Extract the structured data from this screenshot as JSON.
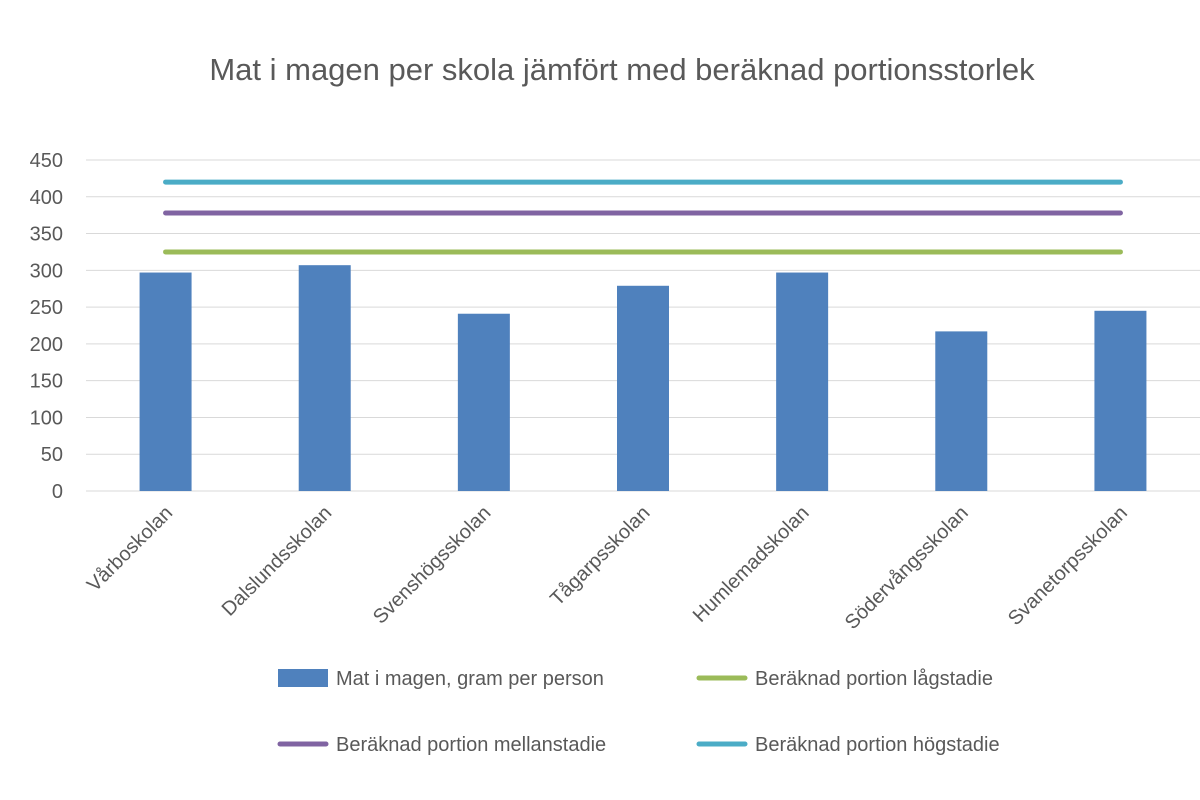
{
  "chart_data": {
    "type": "bar",
    "title": "Mat i magen per skola jämfört med beräknad portionsstorlek",
    "xlabel": "",
    "ylabel": "",
    "ylim": [
      0,
      450
    ],
    "yticks": [
      0,
      50,
      100,
      150,
      200,
      250,
      300,
      350,
      400,
      450
    ],
    "grid": true,
    "legend_position": "bottom",
    "categories": [
      "Vårboskolan",
      "Dalslundsskolan",
      "Svenshögsskolan",
      "Tågarpsskolan",
      "Humlemadskolan",
      "Södervångsskolan",
      "Svanetorpsskolan"
    ],
    "series": [
      {
        "name": "Mat i magen, gram per person",
        "kind": "bar",
        "color": "#4F81BD",
        "values": [
          297,
          307,
          241,
          279,
          297,
          217,
          245
        ]
      },
      {
        "name": "Beräknad portion lågstadie",
        "kind": "line",
        "color": "#9BBB59",
        "values": [
          325,
          325,
          325,
          325,
          325,
          325,
          325
        ]
      },
      {
        "name": "Beräknad portion mellanstadie",
        "kind": "line",
        "color": "#8064A2",
        "values": [
          378,
          378,
          378,
          378,
          378,
          378,
          378
        ]
      },
      {
        "name": "Beräknad portion högstadie",
        "kind": "line",
        "color": "#4BACC6",
        "values": [
          420,
          420,
          420,
          420,
          420,
          420,
          420
        ]
      }
    ]
  }
}
